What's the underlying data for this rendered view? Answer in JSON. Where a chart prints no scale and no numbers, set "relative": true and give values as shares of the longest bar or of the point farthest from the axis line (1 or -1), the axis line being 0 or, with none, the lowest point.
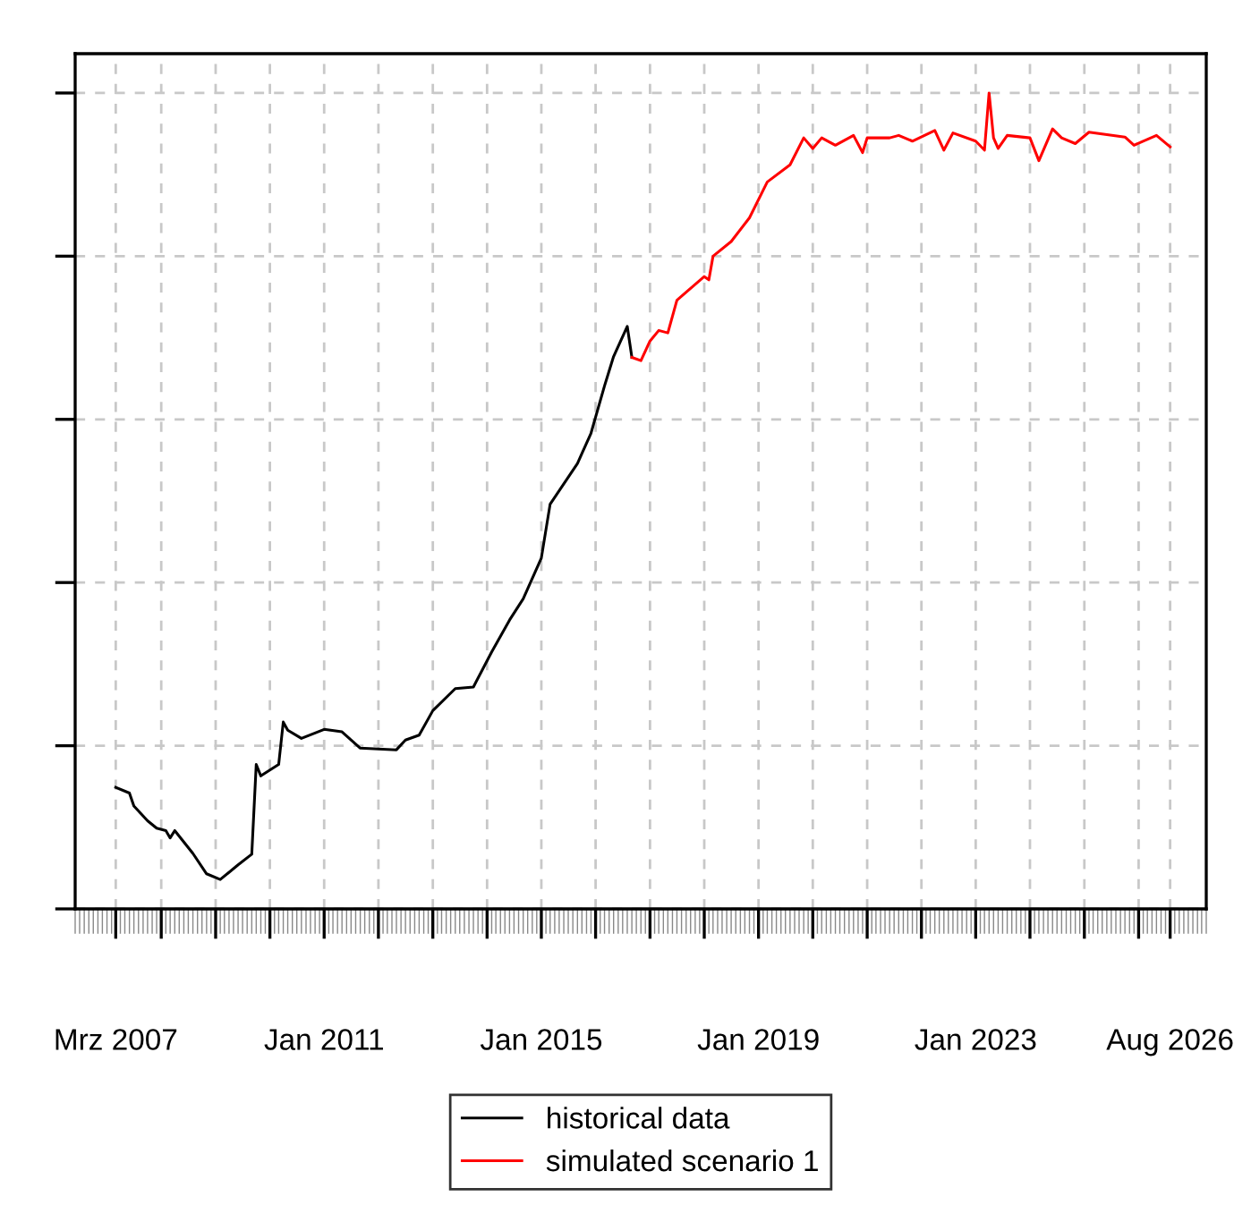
{
  "chart_data": {
    "type": "line",
    "relative": true,
    "grid": true,
    "legend": "bottom",
    "line_style": "solid",
    "marker": "none",
    "xlim": [
      "2006-06",
      "2027-04"
    ],
    "xticks": [
      {
        "value": "2007-03",
        "label": "Mrz 2007"
      },
      {
        "value": "2008-01",
        "label": null
      },
      {
        "value": "2009-01",
        "label": null
      },
      {
        "value": "2010-01",
        "label": null
      },
      {
        "value": "2011-01",
        "label": "Jan 2011"
      },
      {
        "value": "2012-01",
        "label": null
      },
      {
        "value": "2013-01",
        "label": null
      },
      {
        "value": "2014-01",
        "label": null
      },
      {
        "value": "2015-01",
        "label": "Jan 2015"
      },
      {
        "value": "2016-01",
        "label": null
      },
      {
        "value": "2017-01",
        "label": null
      },
      {
        "value": "2018-01",
        "label": null
      },
      {
        "value": "2019-01",
        "label": "Jan 2019"
      },
      {
        "value": "2020-01",
        "label": null
      },
      {
        "value": "2021-01",
        "label": null
      },
      {
        "value": "2022-01",
        "label": null
      },
      {
        "value": "2023-01",
        "label": "Jan 2023"
      },
      {
        "value": "2024-01",
        "label": null
      },
      {
        "value": "2025-01",
        "label": null
      },
      {
        "value": "2026-01",
        "label": null
      },
      {
        "value": "2026-08",
        "label": "Aug 2026"
      }
    ],
    "series": [
      {
        "name": "historical data",
        "color": "#000000",
        "x": [
          "2007-03",
          "2007-06",
          "2007-07",
          "2007-10",
          "2007-12",
          "2008-02",
          "2008-03",
          "2008-04",
          "2008-08",
          "2008-11",
          "2009-02",
          "2009-06",
          "2009-09",
          "2009-10",
          "2009-11",
          "2010-03",
          "2010-04",
          "2010-05",
          "2010-08",
          "2011-01",
          "2011-05",
          "2011-09",
          "2012-05",
          "2012-07",
          "2012-10",
          "2013-01",
          "2013-06",
          "2013-10",
          "2014-02",
          "2014-06",
          "2014-09",
          "2015-01",
          "2015-03",
          "2015-09",
          "2015-12",
          "2016-03",
          "2016-05",
          "2016-08",
          "2016-09"
        ],
        "values": [
          0.149,
          0.142,
          0.126,
          0.108,
          0.099,
          0.096,
          0.087,
          0.096,
          0.068,
          0.043,
          0.036,
          0.054,
          0.067,
          0.177,
          0.163,
          0.177,
          0.229,
          0.219,
          0.209,
          0.22,
          0.217,
          0.197,
          0.195,
          0.207,
          0.213,
          0.243,
          0.27,
          0.272,
          0.315,
          0.354,
          0.38,
          0.43,
          0.496,
          0.546,
          0.583,
          0.641,
          0.677,
          0.714,
          0.676
        ]
      },
      {
        "name": "simulated scenario 1",
        "color": "#ff0000",
        "x": [
          "2016-09",
          "2016-11",
          "2017-01",
          "2017-03",
          "2017-05",
          "2017-07",
          "2018-01",
          "2018-02",
          "2018-03",
          "2018-07",
          "2018-11",
          "2019-03",
          "2019-08",
          "2019-11",
          "2020-01",
          "2020-03",
          "2020-06",
          "2020-10",
          "2020-12",
          "2021-01",
          "2021-06",
          "2021-08",
          "2021-11",
          "2022-04",
          "2022-06",
          "2022-08",
          "2023-01",
          "2023-03",
          "2023-04",
          "2023-05",
          "2023-06",
          "2023-08",
          "2024-01",
          "2024-03",
          "2024-06",
          "2024-08",
          "2024-11",
          "2025-02",
          "2025-10",
          "2025-12",
          "2026-05",
          "2026-08"
        ],
        "values": [
          0.676,
          0.672,
          0.696,
          0.709,
          0.706,
          0.746,
          0.775,
          0.771,
          0.8,
          0.818,
          0.847,
          0.891,
          0.912,
          0.945,
          0.932,
          0.945,
          0.936,
          0.948,
          0.927,
          0.945,
          0.945,
          0.948,
          0.941,
          0.954,
          0.93,
          0.951,
          0.941,
          0.93,
          1.0,
          0.945,
          0.932,
          0.948,
          0.945,
          0.917,
          0.956,
          0.945,
          0.938,
          0.952,
          0.946,
          0.936,
          0.948,
          0.934
        ]
      }
    ]
  }
}
